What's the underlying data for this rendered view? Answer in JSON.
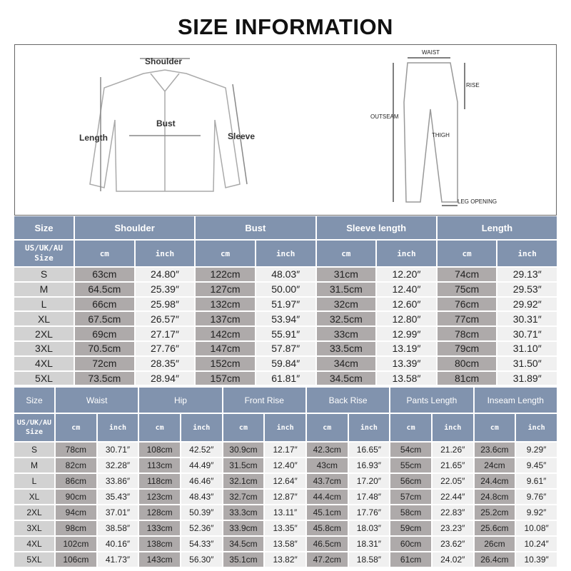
{
  "title": "SIZE INFORMATION",
  "shirt_labels": {
    "shoulder": "Shoulder",
    "bust": "Bust",
    "length": "Length",
    "sleeve": "Sleeve"
  },
  "pants_labels": {
    "waist": "WAIST",
    "rise": "RISE",
    "outseam": "OUTSEAM",
    "thigh": "THIGH",
    "leg_opening": "LEG OPENING"
  },
  "colors": {
    "header": "#8193ae",
    "size_cell": "#d2d2d2",
    "cm_cell": "#aeaaaa",
    "inch_cell": "#f0f0f0"
  },
  "top_table": {
    "size_header": "Size",
    "sub_size_header": "US/UK/AU Size",
    "groups": [
      "Shoulder",
      "Bust",
      "Sleeve length",
      "Length"
    ],
    "unit_cm": "cm",
    "unit_inch": "inch",
    "rows": [
      [
        "S",
        "63cm",
        "24.80″",
        "122cm",
        "48.03″",
        "31cm",
        "12.20″",
        "74cm",
        "29.13″"
      ],
      [
        "M",
        "64.5cm",
        "25.39″",
        "127cm",
        "50.00″",
        "31.5cm",
        "12.40″",
        "75cm",
        "29.53″"
      ],
      [
        "L",
        "66cm",
        "25.98″",
        "132cm",
        "51.97″",
        "32cm",
        "12.60″",
        "76cm",
        "29.92″"
      ],
      [
        "XL",
        "67.5cm",
        "26.57″",
        "137cm",
        "53.94″",
        "32.5cm",
        "12.80″",
        "77cm",
        "30.31″"
      ],
      [
        "2XL",
        "69cm",
        "27.17″",
        "142cm",
        "55.91″",
        "33cm",
        "12.99″",
        "78cm",
        "30.71″"
      ],
      [
        "3XL",
        "70.5cm",
        "27.76″",
        "147cm",
        "57.87″",
        "33.5cm",
        "13.19″",
        "79cm",
        "31.10″"
      ],
      [
        "4XL",
        "72cm",
        "28.35″",
        "152cm",
        "59.84″",
        "34cm",
        "13.39″",
        "80cm",
        "31.50″"
      ],
      [
        "5XL",
        "73.5cm",
        "28.94″",
        "157cm",
        "61.81″",
        "34.5cm",
        "13.58″",
        "81cm",
        "31.89″"
      ]
    ]
  },
  "bottom_table": {
    "size_header": "Size",
    "sub_size_header": "US/UK/AU Size",
    "groups": [
      "Waist",
      "Hip",
      "Front Rise",
      "Back Rise",
      "Pants Length",
      "Inseam Length"
    ],
    "unit_cm": "cm",
    "unit_inch": "inch",
    "rows": [
      [
        "S",
        "78cm",
        "30.71″",
        "108cm",
        "42.52″",
        "30.9cm",
        "12.17″",
        "42.3cm",
        "16.65″",
        "54cm",
        "21.26″",
        "23.6cm",
        "9.29″"
      ],
      [
        "M",
        "82cm",
        "32.28″",
        "113cm",
        "44.49″",
        "31.5cm",
        "12.40″",
        "43cm",
        "16.93″",
        "55cm",
        "21.65″",
        "24cm",
        "9.45″"
      ],
      [
        "L",
        "86cm",
        "33.86″",
        "118cm",
        "46.46″",
        "32.1cm",
        "12.64″",
        "43.7cm",
        "17.20″",
        "56cm",
        "22.05″",
        "24.4cm",
        "9.61″"
      ],
      [
        "XL",
        "90cm",
        "35.43″",
        "123cm",
        "48.43″",
        "32.7cm",
        "12.87″",
        "44.4cm",
        "17.48″",
        "57cm",
        "22.44″",
        "24.8cm",
        "9.76″"
      ],
      [
        "2XL",
        "94cm",
        "37.01″",
        "128cm",
        "50.39″",
        "33.3cm",
        "13.11″",
        "45.1cm",
        "17.76″",
        "58cm",
        "22.83″",
        "25.2cm",
        "9.92″"
      ],
      [
        "3XL",
        "98cm",
        "38.58″",
        "133cm",
        "52.36″",
        "33.9cm",
        "13.35″",
        "45.8cm",
        "18.03″",
        "59cm",
        "23.23″",
        "25.6cm",
        "10.08″"
      ],
      [
        "4XL",
        "102cm",
        "40.16″",
        "138cm",
        "54.33″",
        "34.5cm",
        "13.58″",
        "46.5cm",
        "18.31″",
        "60cm",
        "23.62″",
        "26cm",
        "10.24″"
      ],
      [
        "5XL",
        "106cm",
        "41.73″",
        "143cm",
        "56.30″",
        "35.1cm",
        "13.82″",
        "47.2cm",
        "18.58″",
        "61cm",
        "24.02″",
        "26.4cm",
        "10.39″"
      ]
    ]
  }
}
